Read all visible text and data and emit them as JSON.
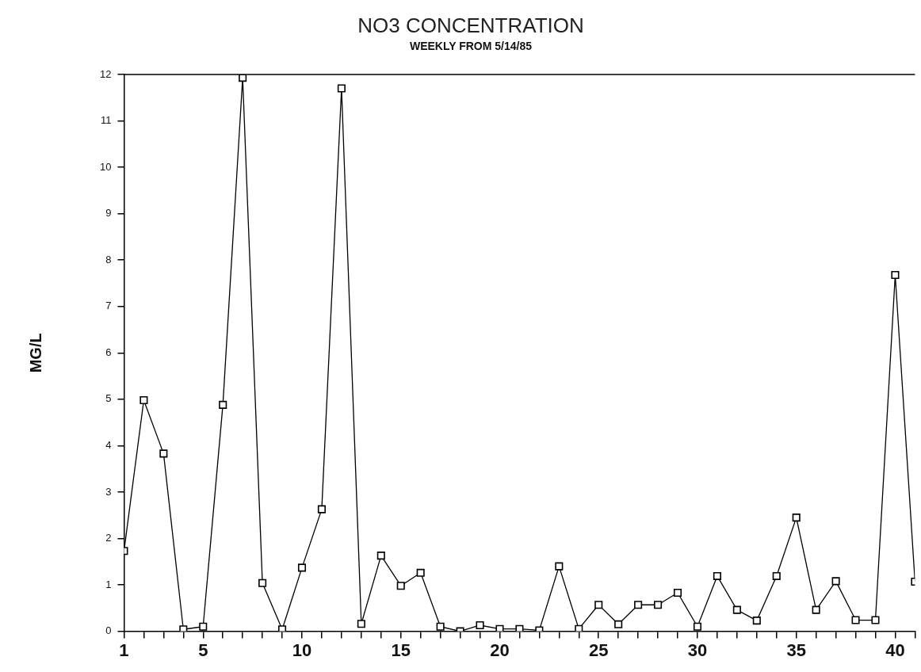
{
  "chart_data": {
    "type": "line",
    "title": "NO3 CONCENTRATION",
    "subtitle": "WEEKLY FROM 5/14/85",
    "ylabel": "MG/L",
    "x": [
      1,
      2,
      3,
      4,
      5,
      6,
      7,
      8,
      9,
      10,
      11,
      12,
      13,
      14,
      15,
      16,
      17,
      18,
      19,
      20,
      21,
      22,
      23,
      24,
      25,
      26,
      27,
      28,
      29,
      30,
      31,
      32,
      33,
      34,
      35,
      36,
      37,
      38,
      39,
      40,
      41
    ],
    "series": [
      {
        "color": "#000000",
        "values": [
          1.73,
          4.98,
          3.83,
          0.04,
          0.1,
          4.88,
          11.93,
          1.04,
          0.04,
          1.37,
          2.63,
          11.7,
          0.16,
          1.63,
          0.98,
          1.26,
          0.1,
          0,
          0.13,
          0.05,
          0.05,
          0.02,
          1.4,
          0.05,
          0.57,
          0.15,
          0.57,
          0.57,
          0.83,
          0.1,
          1.19,
          0.46,
          0.23,
          1.19,
          2.45,
          0.46,
          1.08,
          0.24,
          0.24,
          7.68,
          1.07
        ]
      }
    ],
    "xlim": [
      1,
      41
    ],
    "xticks": [
      1,
      {
        "value": 2,
        "label": null
      },
      {
        "value": 3,
        "label": null
      },
      {
        "value": 4,
        "label": null
      },
      5,
      {
        "value": 6,
        "label": null
      },
      {
        "value": 7,
        "label": null
      },
      {
        "value": 8,
        "label": null
      },
      {
        "value": 9,
        "label": null
      },
      10,
      {
        "value": 11,
        "label": null
      },
      {
        "value": 12,
        "label": null
      },
      {
        "value": 13,
        "label": null
      },
      {
        "value": 14,
        "label": null
      },
      15,
      {
        "value": 16,
        "label": null
      },
      {
        "value": 17,
        "label": null
      },
      {
        "value": 18,
        "label": null
      },
      {
        "value": 19,
        "label": null
      },
      20,
      {
        "value": 21,
        "label": null
      },
      {
        "value": 22,
        "label": null
      },
      {
        "value": 23,
        "label": null
      },
      {
        "value": 24,
        "label": null
      },
      25,
      {
        "value": 26,
        "label": null
      },
      {
        "value": 27,
        "label": null
      },
      {
        "value": 28,
        "label": null
      },
      {
        "value": 29,
        "label": null
      },
      30,
      {
        "value": 31,
        "label": null
      },
      {
        "value": 32,
        "label": null
      },
      {
        "value": 33,
        "label": null
      },
      {
        "value": 34,
        "label": null
      },
      35,
      {
        "value": 36,
        "label": null
      },
      {
        "value": 37,
        "label": null
      },
      {
        "value": 38,
        "label": null
      },
      {
        "value": 39,
        "label": null
      },
      40,
      {
        "value": 41,
        "label": null
      }
    ],
    "ylim": [
      0,
      12
    ],
    "yticks": [
      0,
      1,
      2,
      3,
      4,
      5,
      6,
      7,
      8,
      9,
      10,
      11,
      12
    ],
    "grid": false,
    "legend": false,
    "marker": "square",
    "line_style": "solid"
  }
}
